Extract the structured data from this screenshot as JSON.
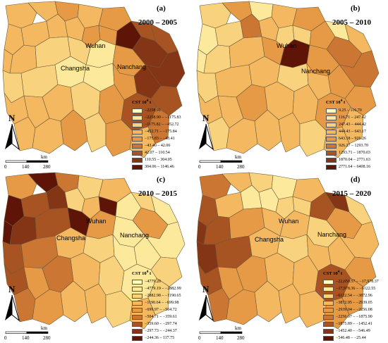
{
  "panels": [
    {
      "label": "(a)",
      "years": "2000 – 2005",
      "cities": [
        "Wuhan",
        "Changsha",
        "Nanchang"
      ],
      "legend_title": "CST 10",
      "legend_title_sup": "4",
      "legend_title_unit": "t",
      "classes": [
        {
          "range": "−2258.91",
          "color": "#ffffc0"
        },
        {
          "range": "−2258.90 – −1175.83",
          "color": "#fde99b"
        },
        {
          "range": "−1175.82 – −452.72",
          "color": "#f9d27d"
        },
        {
          "range": "−452.71 – −175.84",
          "color": "#f4b860"
        },
        {
          "range": "−175.83 – −43.41",
          "color": "#e69a46"
        },
        {
          "range": "−43.40 – 42.06",
          "color": "#cb7633"
        },
        {
          "range": "42.07 – 110.54",
          "color": "#a85422"
        },
        {
          "range": "110.55 – 304.05",
          "color": "#843516"
        },
        {
          "range": "304.06 – 1146.46",
          "color": "#5e1508"
        }
      ]
    },
    {
      "label": "(b)",
      "years": "2005 – 2010",
      "cities": [
        "Wuhan",
        "Nanchang"
      ],
      "legend_title": "CST 10",
      "legend_title_sup": "4",
      "legend_title_unit": "t",
      "classes": [
        {
          "range": "9.25 – 116.70",
          "color": "#ffffc0"
        },
        {
          "range": "116.71 – 247.42",
          "color": "#fde99b"
        },
        {
          "range": "247.43 – 444.42",
          "color": "#f9d27d"
        },
        {
          "range": "444.43 – 643.17",
          "color": "#f4b860"
        },
        {
          "range": "643.18 – 926.26",
          "color": "#e69a46"
        },
        {
          "range": "926.27 – 1293.70",
          "color": "#cb7633"
        },
        {
          "range": "1293.71 – 1870.03",
          "color": "#a85422"
        },
        {
          "range": "1870.04 – 2771.63",
          "color": "#843516"
        },
        {
          "range": "2771.64 – 6408.16",
          "color": "#5e1508"
        }
      ]
    },
    {
      "label": "(c)",
      "years": "2010 – 2015",
      "cities": [
        "Wuhan",
        "Changsha",
        "Nanchang"
      ],
      "legend_title": "CST 10",
      "legend_title_sup": "4",
      "legend_title_unit": "t",
      "classes": [
        {
          "range": "−4779.20",
          "color": "#ffffc0"
        },
        {
          "range": "−4779.19 – −2882.99",
          "color": "#fde99b"
        },
        {
          "range": "−2882.98 – −1190.65",
          "color": "#f9d27d"
        },
        {
          "range": "−1190.64 – −699.98",
          "color": "#f4b860"
        },
        {
          "range": "−699.97 – −504.72",
          "color": "#e69a46"
        },
        {
          "range": "−504.71 – −359.61",
          "color": "#cb7633"
        },
        {
          "range": "−359.60 – −297.74",
          "color": "#a85422"
        },
        {
          "range": "−297.73 – −244.37",
          "color": "#843516"
        },
        {
          "range": "−244.36 – 117.75",
          "color": "#5e1508"
        }
      ]
    },
    {
      "label": "(d)",
      "years": "2015 – 2020",
      "cities": [
        "Wuhan",
        "Changsha",
        "Nanchang"
      ],
      "legend_title": "CST 10",
      "legend_title_sup": "4",
      "legend_title_unit": "t",
      "classes": [
        {
          "range": "−22,659.57 – −17,978.37",
          "color": "#ffffc0"
        },
        {
          "range": "−17,978.36 – −6122.55",
          "color": "#fde99b"
        },
        {
          "range": "−6122.54 – −3872.96",
          "color": "#f9d27d"
        },
        {
          "range": "−3872.95 – −2939.05",
          "color": "#f4b860"
        },
        {
          "range": "−2939.04 – −2256.08",
          "color": "#e69a46"
        },
        {
          "range": "−2256.07 – −1875.90",
          "color": "#cb7633"
        },
        {
          "range": "−1875.89 – −1452.41",
          "color": "#a85422"
        },
        {
          "range": "−1452.40 – −546.49",
          "color": "#843516"
        },
        {
          "range": "−546.48 – −25.44",
          "color": "#5e1508"
        }
      ]
    }
  ],
  "north_label": "N",
  "scale": {
    "unit": "km",
    "ticks": [
      "0",
      "140",
      "280"
    ]
  }
}
